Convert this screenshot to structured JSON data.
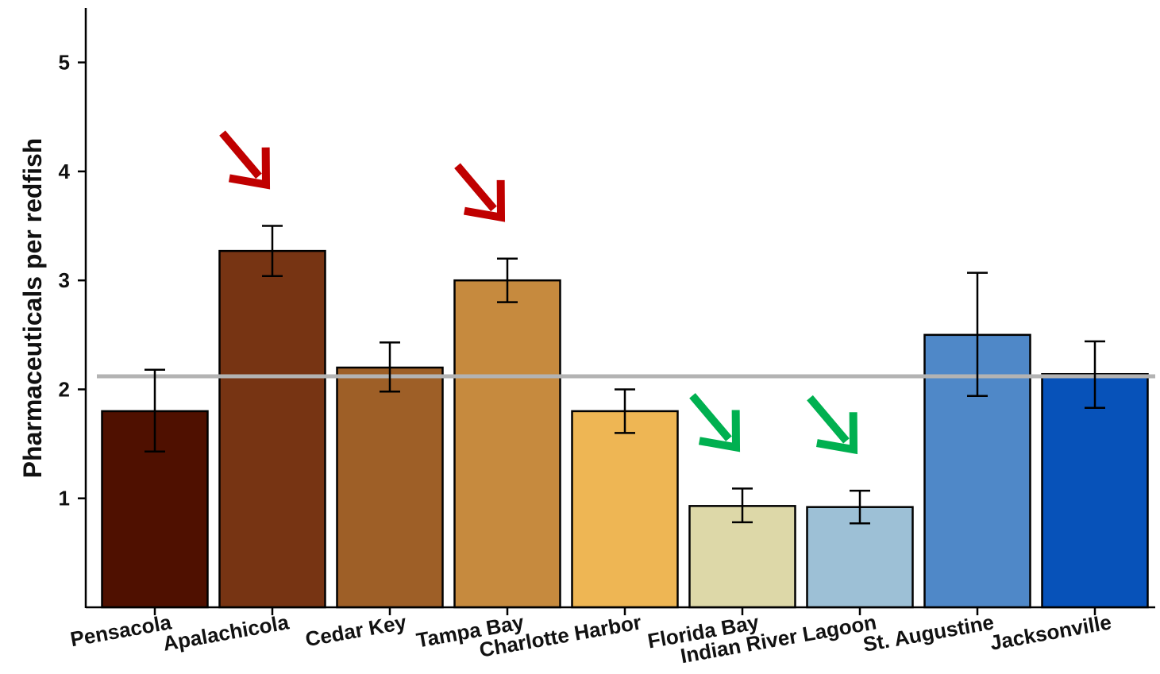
{
  "chart_data": {
    "type": "bar",
    "xlabel": "",
    "ylabel": "Pharmaceuticals per redfish",
    "ylim": [
      0,
      5.5
    ],
    "yticks": [
      1,
      2,
      3,
      4,
      5
    ],
    "grid": false,
    "categories": [
      "Pensacola",
      "Apalachicola",
      "Cedar Key",
      "Tampa Bay",
      "Charlotte Harbor",
      "Florida Bay",
      "Indian River Lagoon",
      "St. Augustine",
      "Jacksonville"
    ],
    "values": [
      1.8,
      3.27,
      2.2,
      3.0,
      1.8,
      0.93,
      0.92,
      2.5,
      2.14
    ],
    "error_low": [
      1.43,
      3.04,
      1.98,
      2.8,
      1.6,
      0.78,
      0.77,
      1.94,
      1.83
    ],
    "error_high": [
      2.18,
      3.5,
      2.43,
      3.2,
      2.0,
      1.09,
      1.07,
      3.07,
      2.44
    ],
    "colors": [
      "#4f1000",
      "#773413",
      "#9e5f27",
      "#c68a3e",
      "#eeb654",
      "#ddd8a8",
      "#9dc0d6",
      "#4f88c8",
      "#0752b9"
    ],
    "reference_line": {
      "value": 2.12,
      "color": "#b3b3b3"
    },
    "annotations": [
      {
        "type": "arrow",
        "target": "Apalachicola",
        "color": "#c00000"
      },
      {
        "type": "arrow",
        "target": "Tampa Bay",
        "color": "#c00000"
      },
      {
        "type": "arrow",
        "target": "Florida Bay",
        "color": "#00b050"
      },
      {
        "type": "arrow",
        "target": "Indian River Lagoon",
        "color": "#00b050"
      }
    ]
  }
}
